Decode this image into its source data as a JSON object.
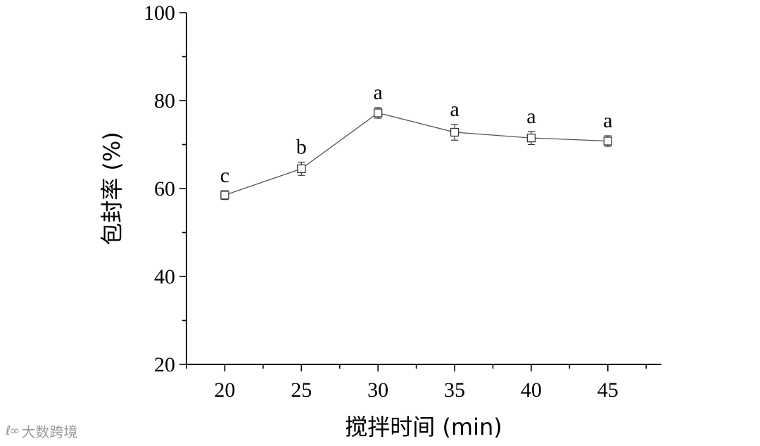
{
  "chart_data": {
    "type": "line",
    "xlabel": "搅拌时间 (min)",
    "ylabel": "包封率 (%)",
    "x": [
      20,
      25,
      30,
      35,
      40,
      45
    ],
    "xticks": [
      "20",
      "25",
      "30",
      "35",
      "40",
      "45"
    ],
    "yticks": [
      "20",
      "40",
      "60",
      "80",
      "100"
    ],
    "xlim": [
      17.5,
      48.5
    ],
    "ylim": [
      20,
      100
    ],
    "grid": false,
    "series": [
      {
        "values": [
          58.5,
          64.5,
          77.2,
          72.8,
          71.5,
          70.8
        ],
        "errors": [
          1.0,
          1.5,
          1.2,
          1.8,
          1.5,
          1.2
        ],
        "labels": [
          "c",
          "b",
          "a",
          "a",
          "a",
          "a"
        ]
      }
    ],
    "colors": {
      "line": "#555555",
      "marker": "#333333",
      "axis": "#000000"
    }
  },
  "watermark": {
    "logo": "ℓ∞",
    "text": "大数跨境"
  }
}
